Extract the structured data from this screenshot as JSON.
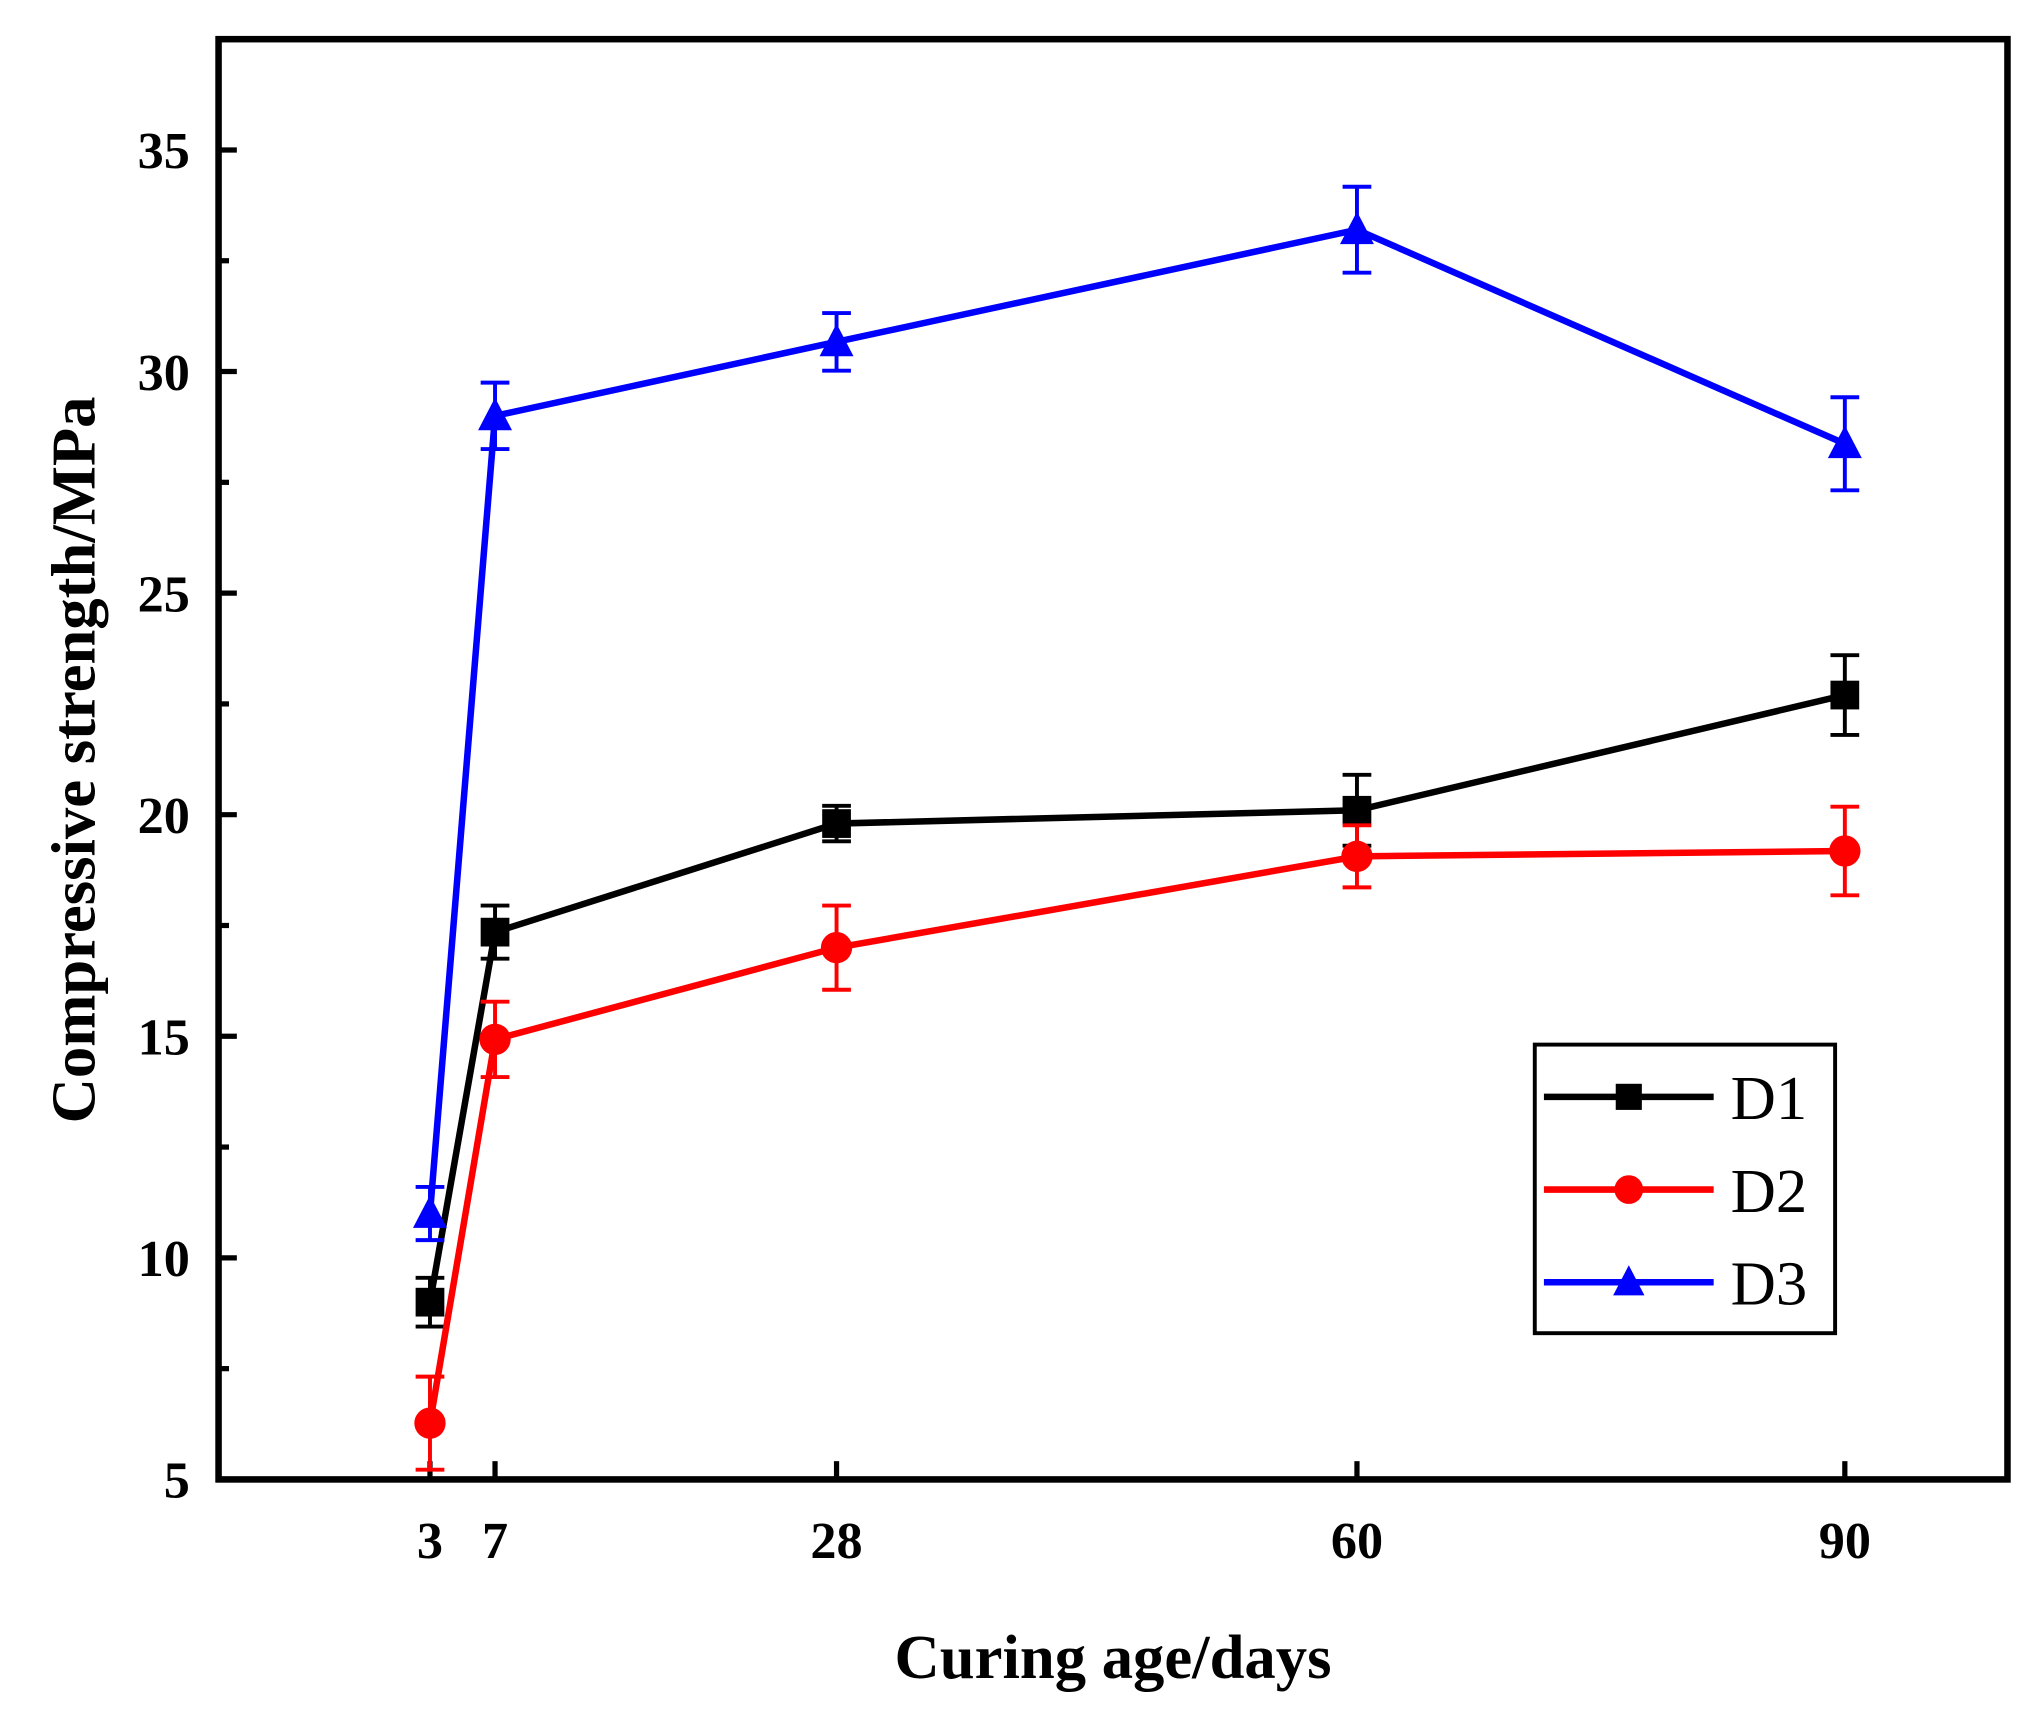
{
  "chart_data": {
    "type": "line",
    "title": "",
    "xlabel": "Curing age/days",
    "ylabel": "Compressive strength/MPa",
    "x": [
      3,
      7,
      28,
      60,
      90
    ],
    "xticks": [
      "3",
      "7",
      "28",
      "60",
      "90"
    ],
    "yticks": [
      "5",
      "10",
      "15",
      "20",
      "25",
      "30",
      "35"
    ],
    "xlim": [
      -10,
      100
    ],
    "ylim": [
      5,
      37.5
    ],
    "grid": false,
    "legend_position": "bottom-right",
    "series": [
      {
        "name": "D1",
        "color": "#000000",
        "marker": "square",
        "values": [
          9.0,
          17.35,
          19.8,
          20.1,
          22.7
        ],
        "errors": [
          0.55,
          0.6,
          0.4,
          0.8,
          0.9
        ]
      },
      {
        "name": "D2",
        "color": "#ff0000",
        "marker": "circle",
        "values": [
          6.27,
          14.93,
          17.0,
          19.06,
          19.18
        ],
        "errors": [
          1.05,
          0.85,
          0.95,
          0.7,
          1.0
        ]
      },
      {
        "name": "D3",
        "color": "#0000ff",
        "marker": "triangle",
        "values": [
          11.0,
          29.0,
          30.67,
          33.2,
          28.37
        ],
        "errors": [
          0.6,
          0.75,
          0.65,
          0.97,
          1.05
        ]
      }
    ]
  }
}
